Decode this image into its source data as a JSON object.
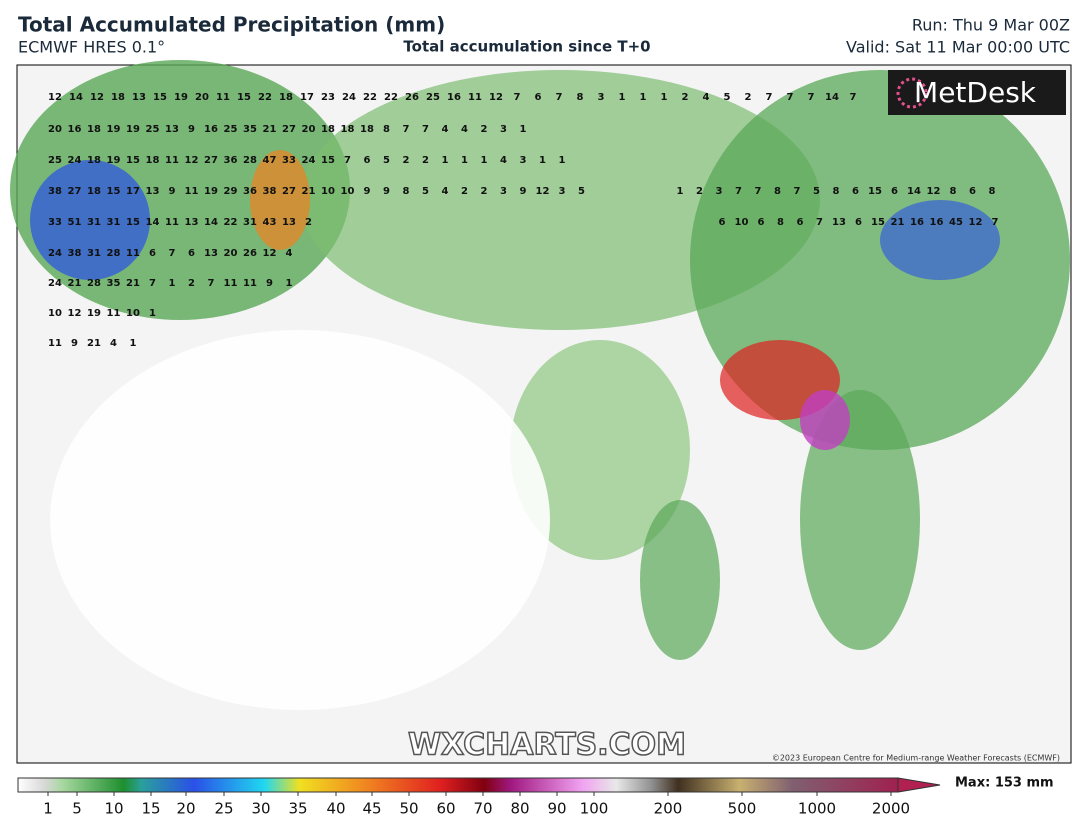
{
  "header": {
    "title": "Total Accumulated Precipitation (mm)",
    "model": "ECMWF HRES 0.1°",
    "subtitle": "Total accumulation since T+0",
    "run": "Run: Thu 9 Mar 00Z",
    "valid": "Valid: Sat 11 Mar 00:00 UTC"
  },
  "logo": "MetDesk",
  "watermark": "WXCHARTS.COM",
  "copyright": "©2023 European Centre for Medium-range Weather Forecasts (ECMWF)",
  "map_labels": [
    [
      12,
      14,
      12,
      18,
      13,
      15,
      19,
      20,
      11,
      15,
      22,
      18,
      17,
      23,
      24,
      22,
      22,
      26,
      25,
      16,
      11,
      12,
      7,
      6,
      7,
      8,
      3,
      1,
      1,
      1,
      2,
      4,
      5,
      2,
      7,
      7,
      7,
      14,
      7
    ],
    [
      20,
      16,
      18,
      19,
      19,
      25,
      13,
      9,
      16,
      25,
      35,
      21,
      27,
      20,
      18,
      18,
      18,
      8,
      7,
      7,
      4,
      4,
      2,
      3,
      1
    ],
    [
      25,
      24,
      18,
      19,
      15,
      18,
      11,
      12,
      27,
      36,
      28,
      47,
      33,
      24,
      15,
      7,
      6,
      5,
      2,
      2,
      1,
      1,
      1,
      4,
      3,
      1,
      1
    ],
    [
      38,
      27,
      18,
      15,
      17,
      13,
      9,
      11,
      19,
      29,
      36,
      38,
      27,
      21,
      10,
      10,
      9,
      9,
      8,
      5,
      4,
      2,
      2,
      3,
      9,
      12,
      3,
      5
    ],
    [
      33,
      51,
      31,
      31,
      15,
      14,
      11,
      13,
      14,
      22,
      31,
      43,
      13,
      2
    ],
    [
      24,
      38,
      31,
      28,
      11,
      6,
      7,
      6,
      13,
      20,
      26,
      12,
      4
    ],
    [
      24,
      21,
      28,
      35,
      21,
      7,
      1,
      2,
      7,
      11,
      11,
      9,
      1
    ],
    [
      10,
      12,
      19,
      11,
      10,
      1
    ],
    [
      11,
      9,
      21,
      4,
      1
    ],
    [
      1,
      2,
      3,
      7,
      7,
      8,
      7,
      5,
      8,
      6,
      15,
      6,
      14,
      12,
      8,
      6,
      8
    ],
    [
      6,
      10,
      6,
      8,
      6,
      7,
      13,
      6,
      15,
      21,
      16,
      16,
      45,
      12,
      7
    ]
  ],
  "colorbar": {
    "ticks": [
      1,
      5,
      10,
      15,
      20,
      25,
      30,
      35,
      40,
      45,
      50,
      60,
      70,
      80,
      90,
      100,
      200,
      500,
      1000,
      2000
    ],
    "max_label": "Max: 153 mm"
  }
}
